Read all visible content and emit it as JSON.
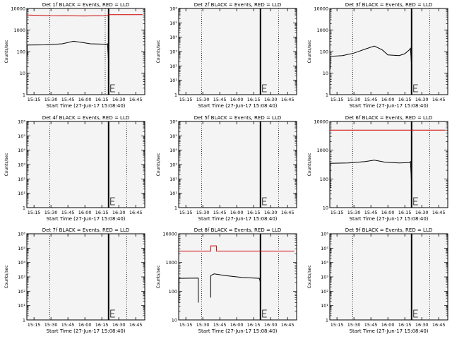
{
  "figure": {
    "background": "#ffffff",
    "plot_background": "#f4f4f4",
    "events_color": "#000000",
    "lld_color": "#cc0000"
  },
  "chart_data": [
    {
      "type": "line",
      "detector": "1f",
      "title": "Det 1f BLACK = Events, RED = LLD",
      "ylabel": "Counts/sec",
      "xlabel": "Start Time (27-Jun-17 15:08:40)",
      "y_scale": "log",
      "ylim": [
        1,
        10000
      ],
      "y_ticks": [
        1,
        10,
        100,
        1000,
        10000
      ],
      "y_tick_labels": [
        "1",
        "10",
        "100",
        "1000",
        "10000"
      ],
      "x_ticks": [
        "15:15",
        "15:30",
        "15:45",
        "16:00",
        "16:15",
        "16:30",
        "16:45"
      ],
      "xlim": [
        "15:08:40",
        "16:53:00"
      ],
      "dotted_vlines": [
        "15:29",
        "16:18"
      ],
      "solid_vlines": [
        "16:21"
      ],
      "series": [
        {
          "color": "#cc0000",
          "points": [
            [
              "15:09",
              5000
            ],
            [
              "15:30",
              4600
            ],
            [
              "16:00",
              4500
            ],
            [
              "16:20",
              4600
            ],
            [
              "16:21",
              5200
            ],
            [
              "16:51",
              5200
            ]
          ]
        },
        {
          "color": "#000000",
          "points": [
            [
              "15:09",
              60
            ],
            [
              "15:09",
              200
            ],
            [
              "15:25",
              205
            ],
            [
              "15:40",
              230
            ],
            [
              "15:50",
              300
            ],
            [
              "15:58",
              260
            ],
            [
              "16:05",
              230
            ],
            [
              "16:19",
              220
            ],
            [
              "16:20",
              230
            ],
            [
              "16:21",
              30
            ]
          ]
        }
      ]
    },
    {
      "type": "line",
      "detector": "2f",
      "title": "Det 2f BLACK = Events, RED = LLD",
      "ylabel": "Counts/sec",
      "xlabel": "Start Time (27-Jun-17 15:08:40)",
      "y_scale": "log",
      "ylim": [
        1,
        1000000
      ],
      "y_ticks": [
        1,
        10,
        100,
        1000,
        10000,
        100000,
        1000000
      ],
      "y_tick_labels": [
        "1",
        "",
        "",
        "",
        "",
        "",
        ""
      ],
      "x_ticks": [
        "15:15",
        "15:30",
        "15:45",
        "16:00",
        "16:15",
        "16:30",
        "16:45"
      ],
      "xlim": [
        "15:08:40",
        "16:53:00"
      ],
      "dotted_vlines": [
        "15:29",
        "16:37"
      ],
      "solid_vlines": [
        "16:21"
      ],
      "series": []
    },
    {
      "type": "line",
      "detector": "3f",
      "title": "Det 3f BLACK = Events, RED = LLD",
      "ylabel": "Counts/sec",
      "xlabel": "Start Time (27-Jun-17 15:08:40)",
      "y_scale": "log",
      "ylim": [
        1,
        10000
      ],
      "y_ticks": [
        1,
        10,
        100,
        1000,
        10000
      ],
      "y_tick_labels": [
        "1",
        "10",
        "100",
        "1000",
        "10000"
      ],
      "x_ticks": [
        "15:15",
        "15:30",
        "15:45",
        "16:00",
        "16:15",
        "16:30",
        "16:45"
      ],
      "xlim": [
        "15:08:40",
        "16:53:00"
      ],
      "dotted_vlines": [
        "15:29",
        "16:37"
      ],
      "solid_vlines": [
        "16:21"
      ],
      "series": [
        {
          "color": "#000000",
          "points": [
            [
              "15:09",
              15
            ],
            [
              "15:09",
              60
            ],
            [
              "15:20",
              65
            ],
            [
              "15:30",
              85
            ],
            [
              "15:40",
              130
            ],
            [
              "15:48",
              180
            ],
            [
              "15:55",
              120
            ],
            [
              "16:00",
              70
            ],
            [
              "16:10",
              65
            ],
            [
              "16:15",
              80
            ],
            [
              "16:19",
              120
            ],
            [
              "16:20",
              140
            ],
            [
              "16:21",
              20
            ]
          ]
        }
      ]
    },
    {
      "type": "line",
      "detector": "4f",
      "title": "Det 4f BLACK = Events, RED = LLD",
      "ylabel": "Counts/sec",
      "xlabel": "Start Time (27-Jun-17 15:08:40)",
      "y_scale": "log",
      "ylim": [
        1,
        1000000
      ],
      "y_ticks": [
        1,
        10,
        100,
        1000,
        10000,
        100000,
        1000000
      ],
      "y_tick_labels": [
        "1",
        "",
        "",
        "",
        "",
        "",
        ""
      ],
      "x_ticks": [
        "15:15",
        "15:30",
        "15:45",
        "16:00",
        "16:15",
        "16:30",
        "16:45"
      ],
      "xlim": [
        "15:08:40",
        "16:53:00"
      ],
      "dotted_vlines": [
        "15:29",
        "16:37"
      ],
      "solid_vlines": [
        "16:21"
      ],
      "series": []
    },
    {
      "type": "line",
      "detector": "5f",
      "title": "Det 5f BLACK = Events, RED = LLD",
      "ylabel": "Counts/sec",
      "xlabel": "Start Time (27-Jun-17 15:08:40)",
      "y_scale": "log",
      "ylim": [
        1,
        1000000
      ],
      "y_ticks": [
        1,
        10,
        100,
        1000,
        10000,
        100000,
        1000000
      ],
      "y_tick_labels": [
        "1",
        "",
        "",
        "",
        "",
        "",
        ""
      ],
      "x_ticks": [
        "15:15",
        "15:30",
        "15:45",
        "16:00",
        "16:15",
        "16:30",
        "16:45"
      ],
      "xlim": [
        "15:08:40",
        "16:53:00"
      ],
      "dotted_vlines": [
        "15:29",
        "16:37"
      ],
      "solid_vlines": [
        "16:21"
      ],
      "series": []
    },
    {
      "type": "line",
      "detector": "6f",
      "title": "Det 6f BLACK = Events, RED = LLD",
      "ylabel": "Counts/sec",
      "xlabel": "Start Time (27-Jun-17 15:08:40)",
      "y_scale": "log",
      "ylim": [
        10,
        10000
      ],
      "y_ticks": [
        10,
        100,
        1000,
        10000
      ],
      "y_tick_labels": [
        "10",
        "100",
        "1000",
        "10000"
      ],
      "x_ticks": [
        "15:15",
        "15:30",
        "15:45",
        "16:00",
        "16:15",
        "16:30",
        "16:45"
      ],
      "xlim": [
        "15:08:40",
        "16:53:00"
      ],
      "dotted_vlines": [
        "15:29",
        "16:37"
      ],
      "solid_vlines": [
        "16:21"
      ],
      "series": [
        {
          "color": "#cc0000",
          "points": [
            [
              "15:09",
              5000
            ],
            [
              "16:51",
              5000
            ]
          ]
        },
        {
          "color": "#000000",
          "points": [
            [
              "15:09",
              50
            ],
            [
              "15:09",
              350
            ],
            [
              "15:25",
              360
            ],
            [
              "15:40",
              400
            ],
            [
              "15:48",
              450
            ],
            [
              "15:58",
              380
            ],
            [
              "16:10",
              360
            ],
            [
              "16:19",
              370
            ],
            [
              "16:20",
              400
            ],
            [
              "16:21",
              60
            ]
          ]
        }
      ]
    },
    {
      "type": "line",
      "detector": "7f",
      "title": "Det 7f BLACK = Events, RED = LLD",
      "ylabel": "Counts/sec",
      "xlabel": "Start Time (27-Jun-17 15:08:40)",
      "y_scale": "log",
      "ylim": [
        1,
        1000000
      ],
      "y_ticks": [
        1,
        10,
        100,
        1000,
        10000,
        100000,
        1000000
      ],
      "y_tick_labels": [
        "1",
        "",
        "",
        "",
        "",
        "",
        ""
      ],
      "x_ticks": [
        "15:15",
        "15:30",
        "15:45",
        "16:00",
        "16:15",
        "16:30",
        "16:45"
      ],
      "xlim": [
        "15:08:40",
        "16:53:00"
      ],
      "dotted_vlines": [
        "15:29",
        "16:37"
      ],
      "solid_vlines": [
        "16:21"
      ],
      "series": []
    },
    {
      "type": "line",
      "detector": "8f",
      "title": "Det 8f BLACK = Events, RED = LLD",
      "ylabel": "Counts/sec",
      "xlabel": "Start Time (27-Jun-17 15:08:40)",
      "y_scale": "log",
      "ylim": [
        10,
        10000
      ],
      "y_ticks": [
        10,
        100,
        1000,
        10000
      ],
      "y_tick_labels": [
        "10",
        "100",
        "1000",
        "10000"
      ],
      "x_ticks": [
        "15:15",
        "15:30",
        "15:45",
        "16:00",
        "16:15",
        "16:30",
        "16:45"
      ],
      "xlim": [
        "15:08:40",
        "16:53:00"
      ],
      "dotted_vlines": [
        "15:29",
        "16:37"
      ],
      "solid_vlines": [
        "16:21"
      ],
      "series": [
        {
          "color": "#cc0000",
          "points": [
            [
              "15:09",
              2500
            ],
            [
              "15:37",
              2500
            ],
            [
              "15:37",
              3800
            ],
            [
              "15:42",
              3800
            ],
            [
              "15:42",
              2500
            ],
            [
              "16:51",
              2500
            ]
          ]
        },
        {
          "color": "#000000",
          "points": [
            [
              "15:09",
              40
            ],
            [
              "15:09",
              280
            ],
            [
              "15:26",
              285
            ],
            [
              "15:26",
              40
            ]
          ]
        },
        {
          "color": "#000000",
          "points": [
            [
              "15:37",
              60
            ],
            [
              "15:37",
              350
            ],
            [
              "15:40",
              400
            ],
            [
              "15:50",
              350
            ],
            [
              "16:05",
              300
            ],
            [
              "16:20",
              280
            ],
            [
              "16:21",
              200
            ],
            [
              "16:21",
              60
            ]
          ]
        }
      ]
    },
    {
      "type": "line",
      "detector": "9f",
      "title": "Det 9f BLACK = Events, RED = LLD",
      "ylabel": "Counts/sec",
      "xlabel": "Start Time (27-Jun-17 15:08:40)",
      "y_scale": "log",
      "ylim": [
        1,
        1000000
      ],
      "y_ticks": [
        1,
        10,
        100,
        1000,
        10000,
        100000,
        1000000
      ],
      "y_tick_labels": [
        "1",
        "",
        "",
        "",
        "",
        "",
        ""
      ],
      "x_ticks": [
        "15:15",
        "15:30",
        "15:45",
        "16:00",
        "16:15",
        "16:30",
        "16:45"
      ],
      "xlim": [
        "15:08:40",
        "16:53:00"
      ],
      "dotted_vlines": [
        "15:29",
        "16:37"
      ],
      "solid_vlines": [
        "16:21"
      ],
      "series": []
    }
  ]
}
